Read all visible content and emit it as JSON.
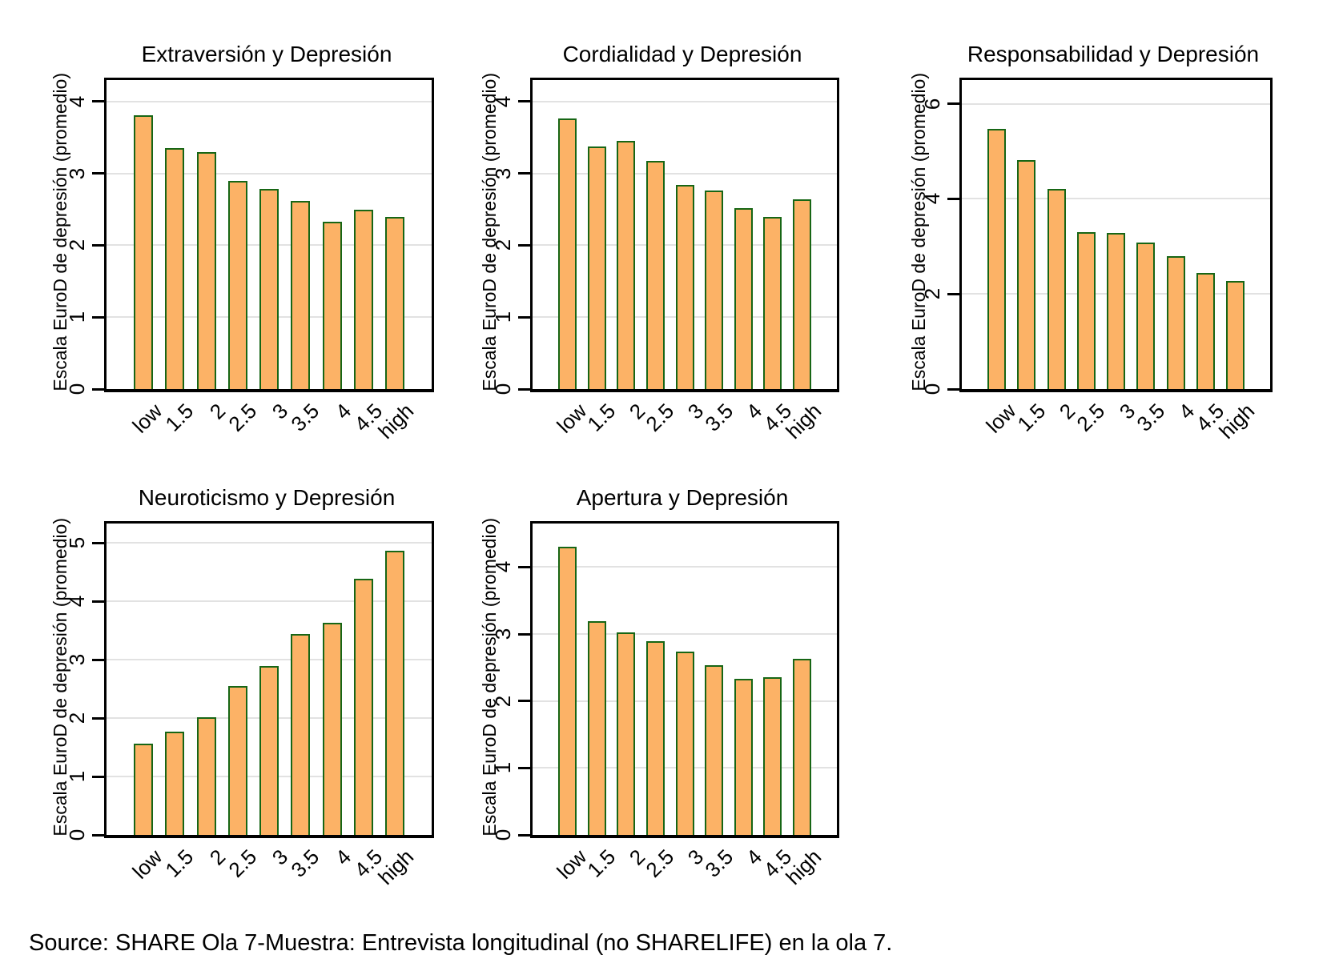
{
  "page": {
    "background": "#ffffff"
  },
  "colors": {
    "bar_fill": "#FCB266",
    "bar_border": "#176615",
    "gridline": "#E2E2E2",
    "axis": "#000000",
    "text": "#000000"
  },
  "source_note": "Source: SHARE Ola 7-Muestra: Entrevista longitudinal (no SHARELIFE) en la ola 7.",
  "chart_data": [
    {
      "type": "bar",
      "title": "Extraversión y Depresión",
      "xlabel": "",
      "ylabel": "Escala EuroD de depresión (promedio)",
      "categories": [
        "low",
        "1.5",
        "2",
        "2.5",
        "3",
        "3.5",
        "4",
        "4.5",
        "high"
      ],
      "values": [
        3.81,
        3.35,
        3.3,
        2.9,
        2.78,
        2.62,
        2.33,
        2.49,
        2.4
      ],
      "yticks": [
        0,
        1,
        2,
        3,
        4
      ],
      "ylim": [
        0,
        4.3
      ],
      "grid": true,
      "legend": "none"
    },
    {
      "type": "bar",
      "title": "Cordialidad y Depresión",
      "xlabel": "",
      "ylabel": "Escala EuroD de depresión (promedio)",
      "categories": [
        "low",
        "1.5",
        "2",
        "2.5",
        "3",
        "3.5",
        "4",
        "4.5",
        "high"
      ],
      "values": [
        3.76,
        3.37,
        3.45,
        3.17,
        2.84,
        2.76,
        2.52,
        2.4,
        2.64
      ],
      "yticks": [
        0,
        1,
        2,
        3,
        4
      ],
      "ylim": [
        0,
        4.3
      ],
      "grid": true,
      "legend": "none"
    },
    {
      "type": "bar",
      "title": "Responsabilidad y Depresión",
      "xlabel": "",
      "ylabel": "Escala EuroD de depresión (promedio)",
      "categories": [
        "low",
        "1.5",
        "2",
        "2.5",
        "3",
        "3.5",
        "4",
        "4.5",
        "high"
      ],
      "values": [
        5.48,
        4.82,
        4.21,
        3.3,
        3.28,
        3.09,
        2.79,
        2.45,
        2.28
      ],
      "yticks": [
        0,
        2,
        4,
        6
      ],
      "ylim": [
        0,
        6.5
      ],
      "grid": true,
      "legend": "none"
    },
    {
      "type": "bar",
      "title": "Neuroticismo y Depresión",
      "xlabel": "",
      "ylabel": "Escala EuroD de depresión (promedio)",
      "categories": [
        "low",
        "1.5",
        "2",
        "2.5",
        "3",
        "3.5",
        "4",
        "4.5",
        "high"
      ],
      "values": [
        1.56,
        1.77,
        2.01,
        2.55,
        2.89,
        3.44,
        3.63,
        4.39,
        4.86
      ],
      "yticks": [
        0,
        1,
        2,
        3,
        4,
        5
      ],
      "ylim": [
        0,
        5.33
      ],
      "grid": true,
      "legend": "none"
    },
    {
      "type": "bar",
      "title": "Apertura y Depresión",
      "xlabel": "",
      "ylabel": "Escala EuroD de depresión (promedio)",
      "categories": [
        "low",
        "1.5",
        "2",
        "2.5",
        "3",
        "3.5",
        "4",
        "4.5",
        "high"
      ],
      "values": [
        4.3,
        3.19,
        3.03,
        2.89,
        2.74,
        2.53,
        2.33,
        2.36,
        2.63
      ],
      "yticks": [
        0,
        1,
        2,
        3,
        4
      ],
      "ylim": [
        0,
        4.65
      ],
      "grid": true,
      "legend": "none"
    }
  ]
}
